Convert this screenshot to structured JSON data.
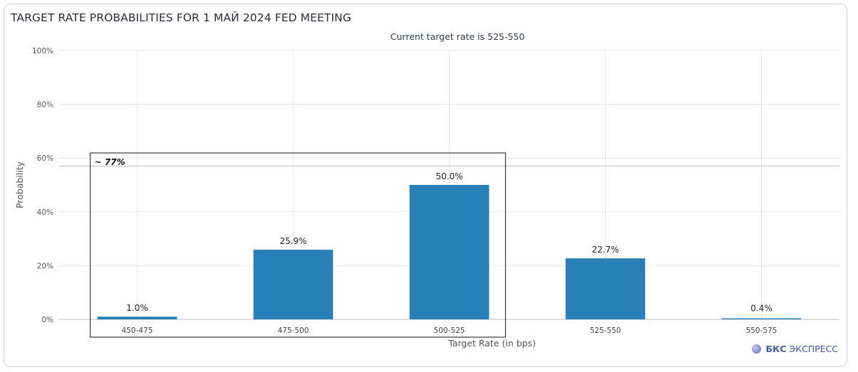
{
  "title": "TARGET RATE PROBABILITIES FOR 1 МАЙ 2024 FED MEETING",
  "subtitle": "Current target rate is 525-550",
  "logo": {
    "bold": "БКС",
    "text": "ЭКСПРЕСС"
  },
  "annotation": "~ 77%",
  "chart_data": {
    "type": "bar",
    "title": "TARGET RATE PROBABILITIES FOR 1 МАЙ 2024 FED MEETING",
    "subtitle": "Current target rate is 525-550",
    "xlabel": "Target Rate (in bps)",
    "ylabel": "Probability",
    "categories": [
      "450-475",
      "475-500",
      "500-525",
      "525-550",
      "550-575"
    ],
    "values": [
      1.0,
      25.9,
      50.0,
      22.7,
      0.4
    ],
    "value_labels": [
      "1.0%",
      "25.9%",
      "50.0%",
      "22.7%",
      "0.4%"
    ],
    "ylim": [
      0,
      100
    ],
    "yticks": [
      0,
      20,
      40,
      60,
      80,
      100
    ],
    "ytick_labels": [
      "0%",
      "20%",
      "40%",
      "60%",
      "80%",
      "100%"
    ],
    "grid": true,
    "bar_color": "#2980b9",
    "reference_line": 57,
    "highlight_box": {
      "label": "~ 77%",
      "categories": [
        "450-475",
        "475-500",
        "500-525"
      ]
    }
  }
}
